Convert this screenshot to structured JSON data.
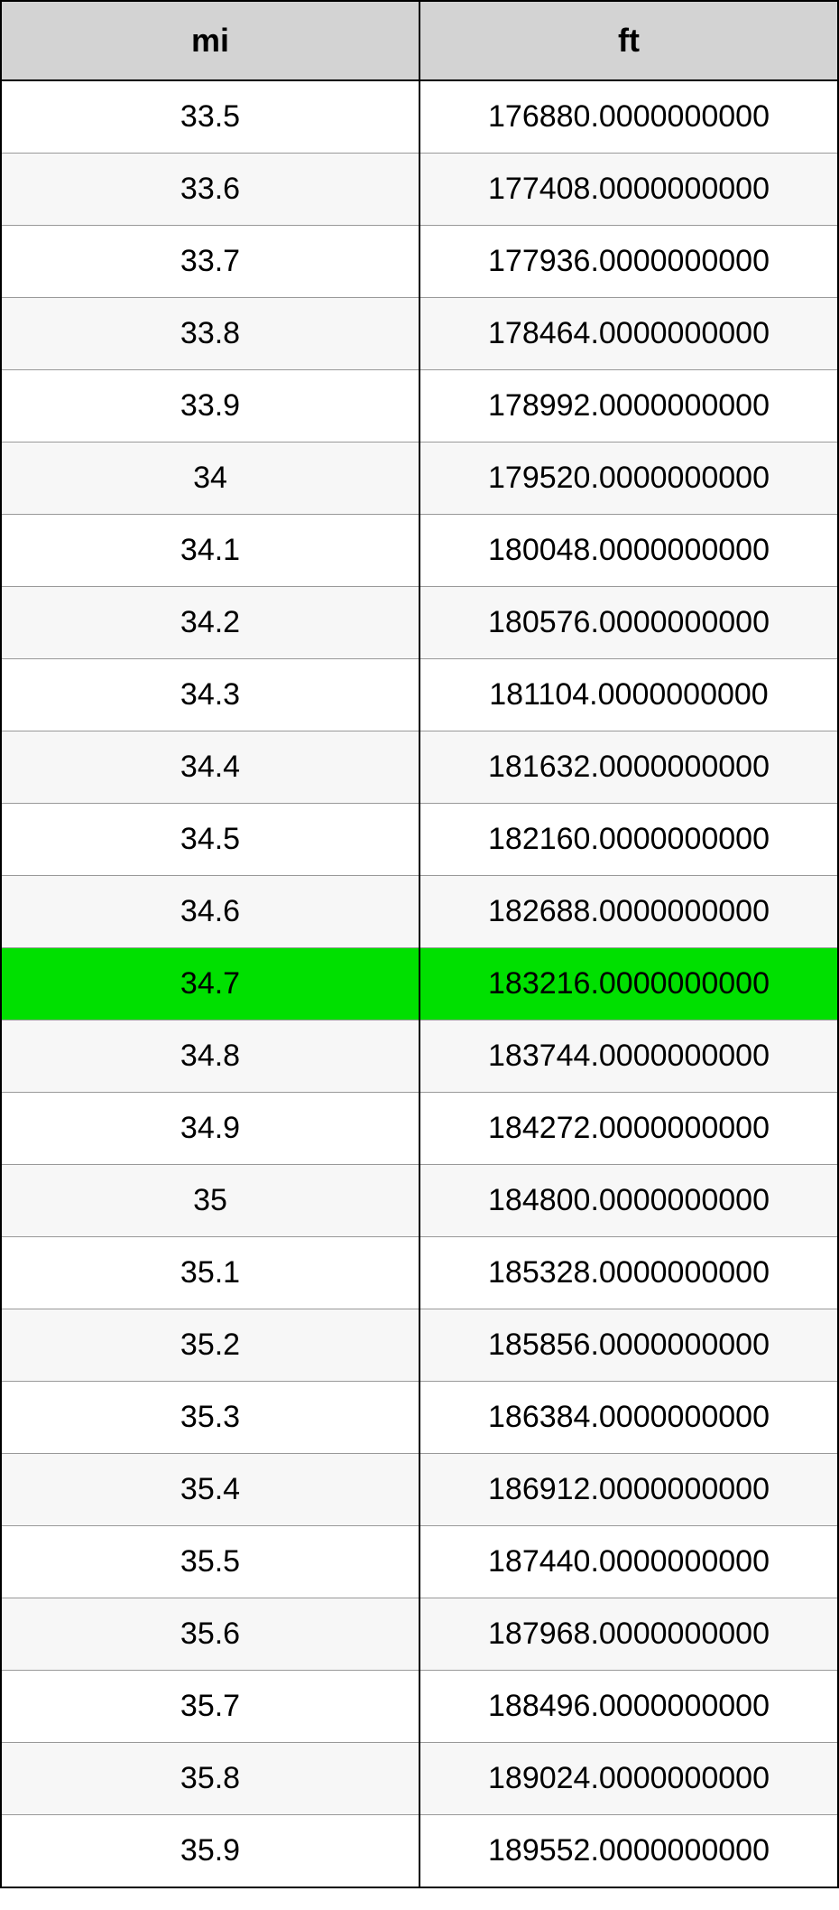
{
  "table": {
    "columns": [
      "mi",
      "ft"
    ],
    "highlighted_row_index": 12,
    "highlight_color": "#00e000",
    "header_bg_color": "#d3d3d3",
    "alt_row_bg_color": "#f7f7f7",
    "border_color": "#000000",
    "font_size_header": 36,
    "font_size_cell": 34,
    "rows": [
      [
        "33.5",
        "176880.0000000000"
      ],
      [
        "33.6",
        "177408.0000000000"
      ],
      [
        "33.7",
        "177936.0000000000"
      ],
      [
        "33.8",
        "178464.0000000000"
      ],
      [
        "33.9",
        "178992.0000000000"
      ],
      [
        "34",
        "179520.0000000000"
      ],
      [
        "34.1",
        "180048.0000000000"
      ],
      [
        "34.2",
        "180576.0000000000"
      ],
      [
        "34.3",
        "181104.0000000000"
      ],
      [
        "34.4",
        "181632.0000000000"
      ],
      [
        "34.5",
        "182160.0000000000"
      ],
      [
        "34.6",
        "182688.0000000000"
      ],
      [
        "34.7",
        "183216.0000000000"
      ],
      [
        "34.8",
        "183744.0000000000"
      ],
      [
        "34.9",
        "184272.0000000000"
      ],
      [
        "35",
        "184800.0000000000"
      ],
      [
        "35.1",
        "185328.0000000000"
      ],
      [
        "35.2",
        "185856.0000000000"
      ],
      [
        "35.3",
        "186384.0000000000"
      ],
      [
        "35.4",
        "186912.0000000000"
      ],
      [
        "35.5",
        "187440.0000000000"
      ],
      [
        "35.6",
        "187968.0000000000"
      ],
      [
        "35.7",
        "188496.0000000000"
      ],
      [
        "35.8",
        "189024.0000000000"
      ],
      [
        "35.9",
        "189552.0000000000"
      ]
    ]
  }
}
